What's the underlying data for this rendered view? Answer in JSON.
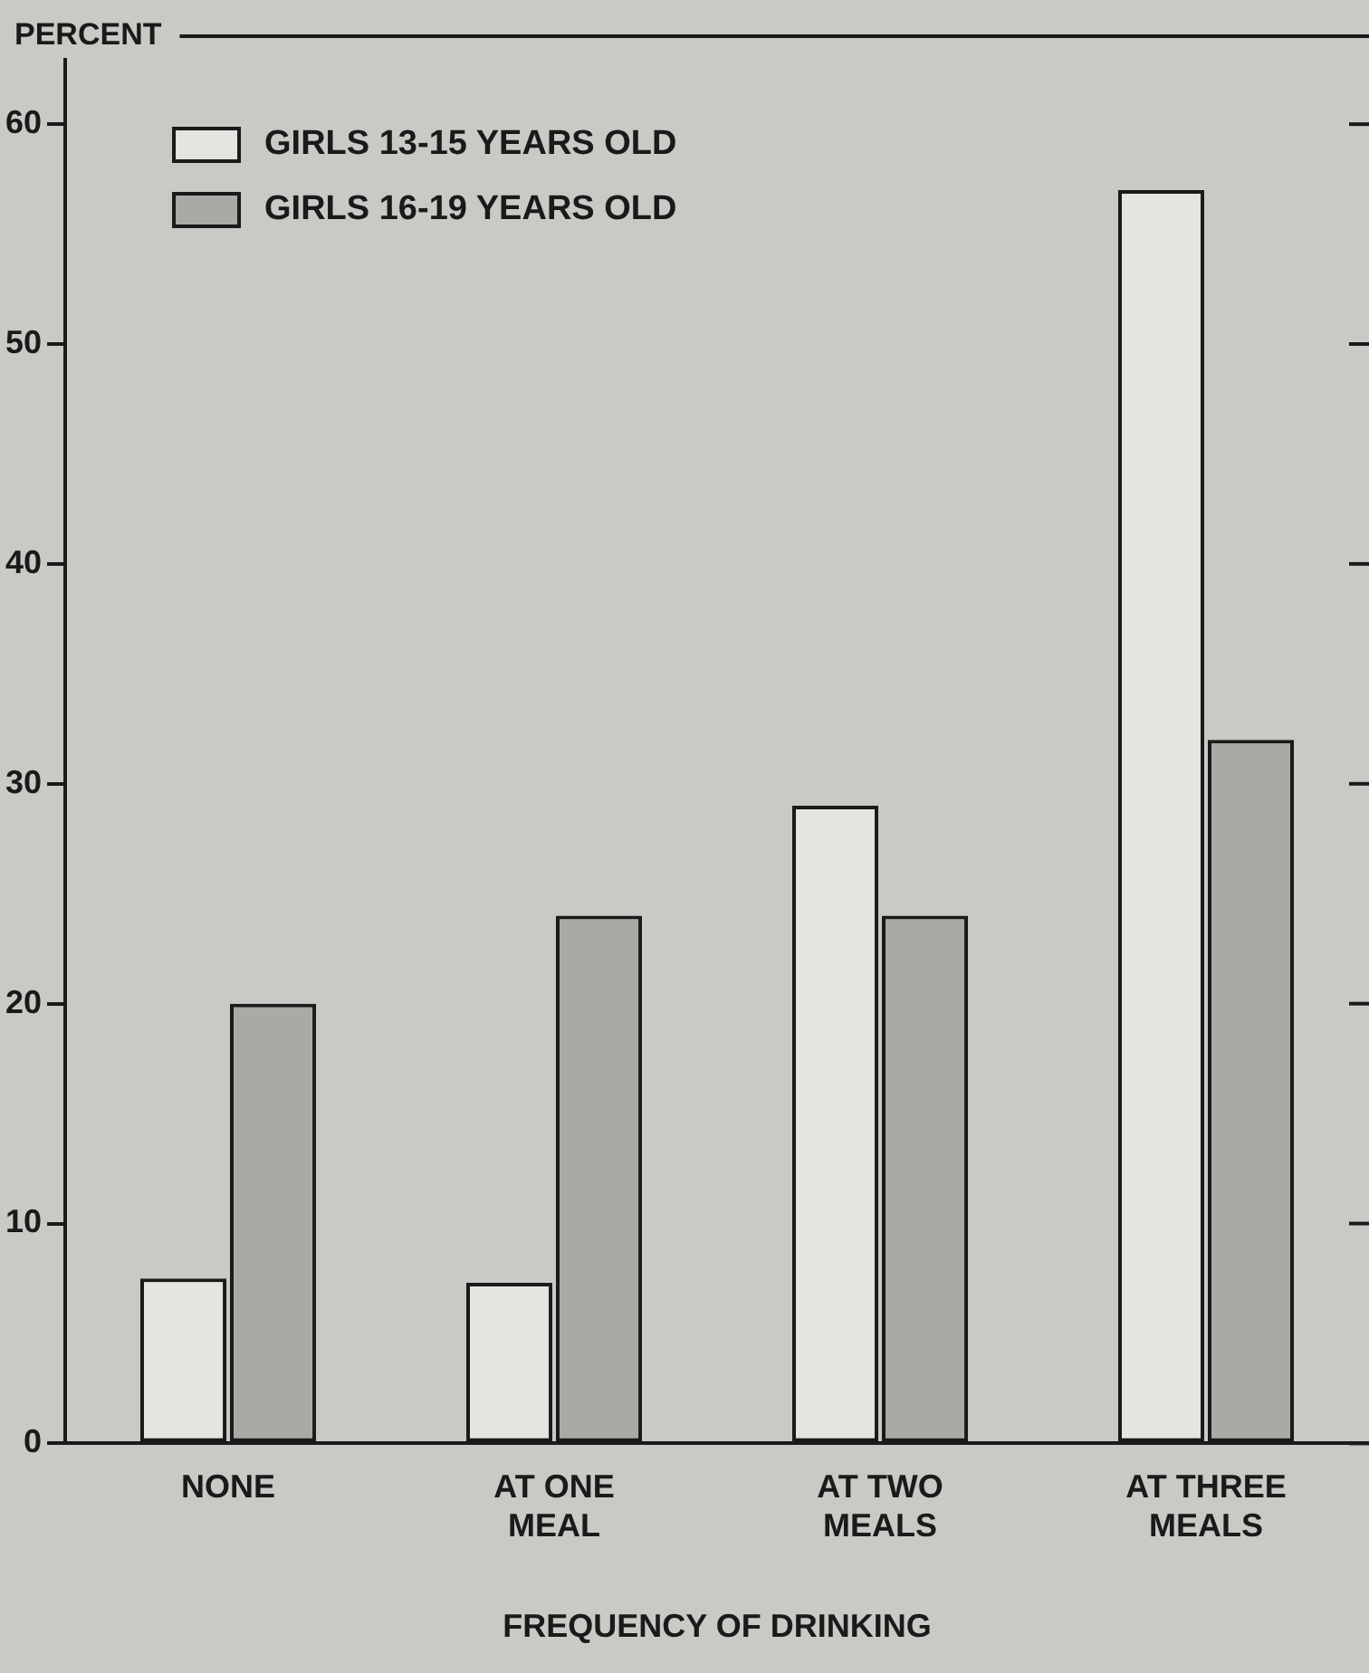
{
  "chart_data": {
    "type": "bar",
    "ylabel": "PERCENT",
    "xlabel": "FREQUENCY OF DRINKING",
    "categories": [
      "NONE",
      "AT ONE MEAL",
      "AT TWO MEALS",
      "AT THREE MEALS"
    ],
    "series": [
      {
        "name": "GIRLS 13-15 YEARS OLD",
        "color": "#e4e4e0",
        "values": [
          7.5,
          7.3,
          29,
          57
        ]
      },
      {
        "name": "GIRLS 16-19 YEARS OLD",
        "color": "#a9a9a5",
        "values": [
          20,
          24,
          24,
          32
        ]
      }
    ],
    "ylim": [
      0,
      64
    ],
    "yticks": [
      0,
      10,
      20,
      30,
      40,
      50,
      60
    ],
    "grid": false,
    "legend": "top left"
  }
}
